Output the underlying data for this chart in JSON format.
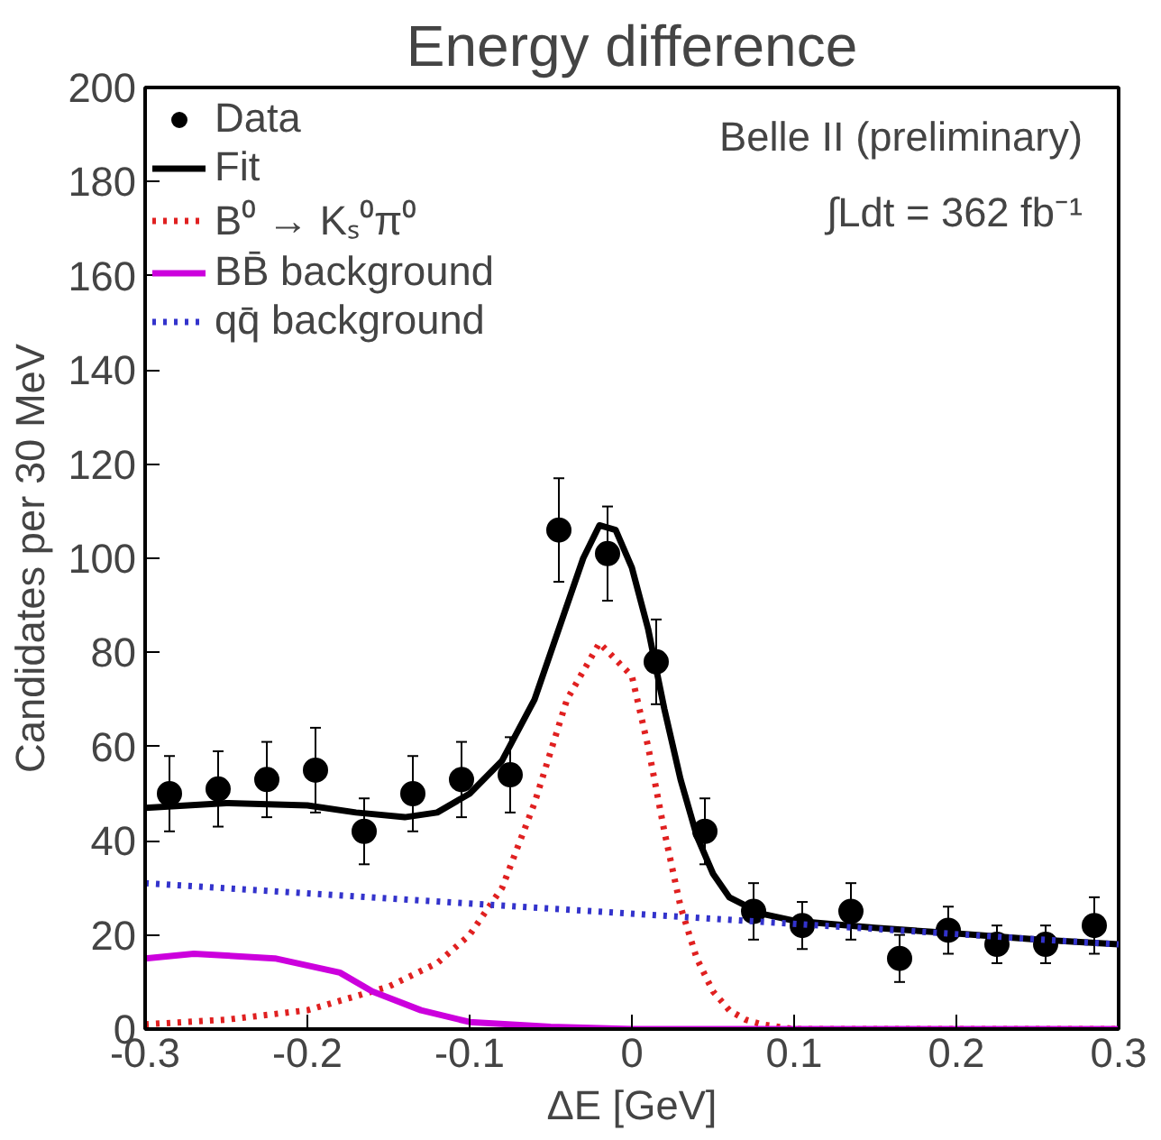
{
  "chart_data": {
    "type": "line",
    "title": "Energy difference",
    "xlabel": "ΔE [GeV]",
    "ylabel": "Candidates per 30 MeV",
    "xlim": [
      -0.3,
      0.3
    ],
    "xticks": [
      -0.3,
      -0.2,
      -0.1,
      0,
      0.1,
      0.2,
      0.3
    ],
    "ylim": [
      0,
      200
    ],
    "yticks": [
      0,
      20,
      40,
      60,
      80,
      100,
      120,
      140,
      160,
      180,
      200
    ],
    "grid": false,
    "legend": "top left",
    "annotations": [
      "Belle II (preliminary)",
      "∫Ldt = 362 fb⁻¹"
    ],
    "series": [
      {
        "name": "Data",
        "type": "scatter",
        "marker": "circle",
        "color": "#000000",
        "x": [
          -0.285,
          -0.255,
          -0.225,
          -0.195,
          -0.165,
          -0.135,
          -0.105,
          -0.075,
          -0.045,
          -0.015,
          0.015,
          0.045,
          0.075,
          0.105,
          0.135,
          0.165,
          0.195,
          0.225,
          0.255,
          0.285
        ],
        "values": [
          50,
          51,
          53,
          55,
          42,
          50,
          53,
          54,
          106,
          101,
          78,
          42,
          25,
          22,
          25,
          15,
          21,
          18,
          18,
          22
        ],
        "errors": [
          8,
          8,
          8,
          9,
          7,
          8,
          8,
          8,
          11,
          10,
          9,
          7,
          6,
          5,
          6,
          5,
          5,
          4,
          4,
          6
        ]
      },
      {
        "name": "Fit",
        "line_style": "solid",
        "color": "#000000",
        "x": [
          -0.3,
          -0.25,
          -0.2,
          -0.17,
          -0.14,
          -0.12,
          -0.1,
          -0.08,
          -0.06,
          -0.04,
          -0.03,
          -0.02,
          -0.01,
          0,
          0.01,
          0.02,
          0.03,
          0.04,
          0.05,
          0.06,
          0.08,
          0.1,
          0.15,
          0.2,
          0.25,
          0.3
        ],
        "values": [
          47,
          48,
          47.5,
          46,
          45,
          46,
          50,
          57,
          70,
          90,
          100,
          107,
          106,
          98,
          85,
          68,
          53,
          41,
          33,
          28,
          24.5,
          23,
          21.5,
          20.3,
          19,
          18
        ]
      },
      {
        "name": "B⁰ → Kₛ⁰π⁰",
        "line_style": "dotted",
        "color": "#e02020",
        "x": [
          -0.3,
          -0.25,
          -0.2,
          -0.15,
          -0.12,
          -0.1,
          -0.08,
          -0.06,
          -0.04,
          -0.02,
          0,
          0.01,
          0.02,
          0.03,
          0.04,
          0.05,
          0.06,
          0.07,
          0.08,
          0.1,
          0.3
        ],
        "values": [
          1,
          2,
          4,
          9,
          14,
          20,
          30,
          48,
          70,
          82,
          75,
          60,
          42,
          26,
          15,
          8,
          4,
          2,
          1,
          0,
          0
        ]
      },
      {
        "name": "BB̄ background",
        "line_style": "solid",
        "color": "#cc00dd",
        "x": [
          -0.3,
          -0.27,
          -0.22,
          -0.18,
          -0.16,
          -0.13,
          -0.1,
          -0.05,
          0,
          0.3
        ],
        "values": [
          15,
          16,
          15,
          12,
          8,
          4,
          1.5,
          0.5,
          0,
          0
        ]
      },
      {
        "name": "qq̄ background",
        "line_style": "dotted",
        "color": "#3333cc",
        "x": [
          -0.3,
          0.3
        ],
        "values": [
          31,
          18
        ]
      }
    ]
  }
}
